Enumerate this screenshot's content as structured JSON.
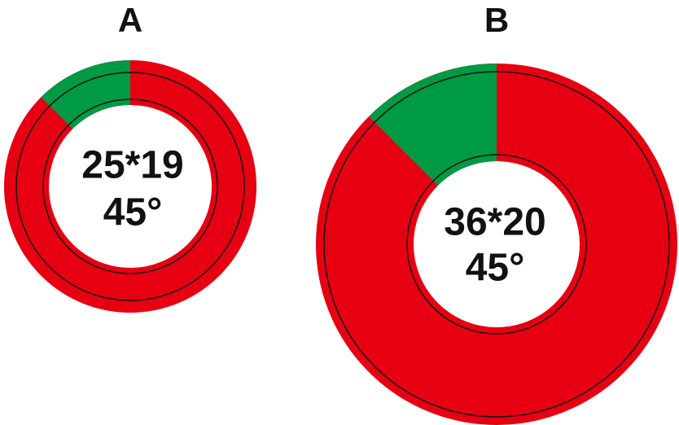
{
  "rings": [
    {
      "title": "A",
      "size": "25*19",
      "angle": "45°"
    },
    {
      "title": "B",
      "size": "36*20",
      "angle": "45°"
    }
  ]
}
